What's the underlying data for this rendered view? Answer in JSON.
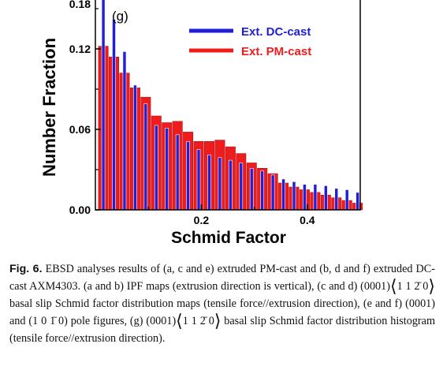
{
  "chart_data": {
    "type": "bar",
    "panel_label": "(g)",
    "xlabel": "Schmid Factor",
    "ylabel": "Number Fraction",
    "xlim": [
      0.0,
      0.5
    ],
    "ylim": [
      0.0,
      0.18
    ],
    "xticks": [
      "0.2",
      "0.4"
    ],
    "xtick_values": [
      0.2,
      0.4
    ],
    "yticks": [
      "0.00",
      "0.06",
      "0.12",
      "0.18"
    ],
    "ytick_values": [
      0.0,
      0.06,
      0.12,
      0.18
    ],
    "bin_centers": [
      0.015,
      0.035,
      0.055,
      0.075,
      0.095,
      0.115,
      0.135,
      0.155,
      0.175,
      0.195,
      0.215,
      0.235,
      0.255,
      0.275,
      0.295,
      0.315,
      0.335,
      0.355,
      0.375,
      0.395,
      0.415,
      0.435,
      0.455,
      0.475,
      0.495
    ],
    "series": [
      {
        "name": "Ext. DC-cast",
        "color": "#1f1fd8",
        "values": [
          0.165,
          0.142,
          0.118,
          0.093,
          0.079,
          0.063,
          0.061,
          0.056,
          0.051,
          0.045,
          0.041,
          0.039,
          0.037,
          0.035,
          0.031,
          0.029,
          0.026,
          0.023,
          0.021,
          0.019,
          0.019,
          0.018,
          0.016,
          0.015,
          0.013
        ]
      },
      {
        "name": "Ext. PM-cast",
        "color": "#ee1c1c",
        "values": [
          0.122,
          0.114,
          0.102,
          0.091,
          0.084,
          0.07,
          0.065,
          0.066,
          0.058,
          0.051,
          0.051,
          0.052,
          0.047,
          0.042,
          0.035,
          0.031,
          0.027,
          0.02,
          0.017,
          0.015,
          0.013,
          0.011,
          0.009,
          0.007,
          0.005
        ]
      }
    ],
    "legend_position": "top-right",
    "grid": false
  },
  "caption": {
    "label": "Fig. 6.",
    "p1": " EBSD analyses results of (a, c and e) extruded PM-cast and (b, d and f) extruded DC-cast AXM4303. (a and b) IPF maps (extrusion direction is vertical), (c and d) ",
    "plane1": "(0001)",
    "dir1": "1 1 2̄ 0",
    "p2": " basal slip Schmid factor distribution maps (tensile force//extrusion direction), (e and f) ",
    "plane2": "(0001)",
    "p3": " and ",
    "plane3": "(1 0 1̄ 0)",
    "p4": " pole figures, (g) ",
    "plane4": "(0001)",
    "dir2": "1 1 2̄ 0",
    "p5": " basal slip Schmid factor distribution histogram (tensile force//extrusion direction)."
  }
}
